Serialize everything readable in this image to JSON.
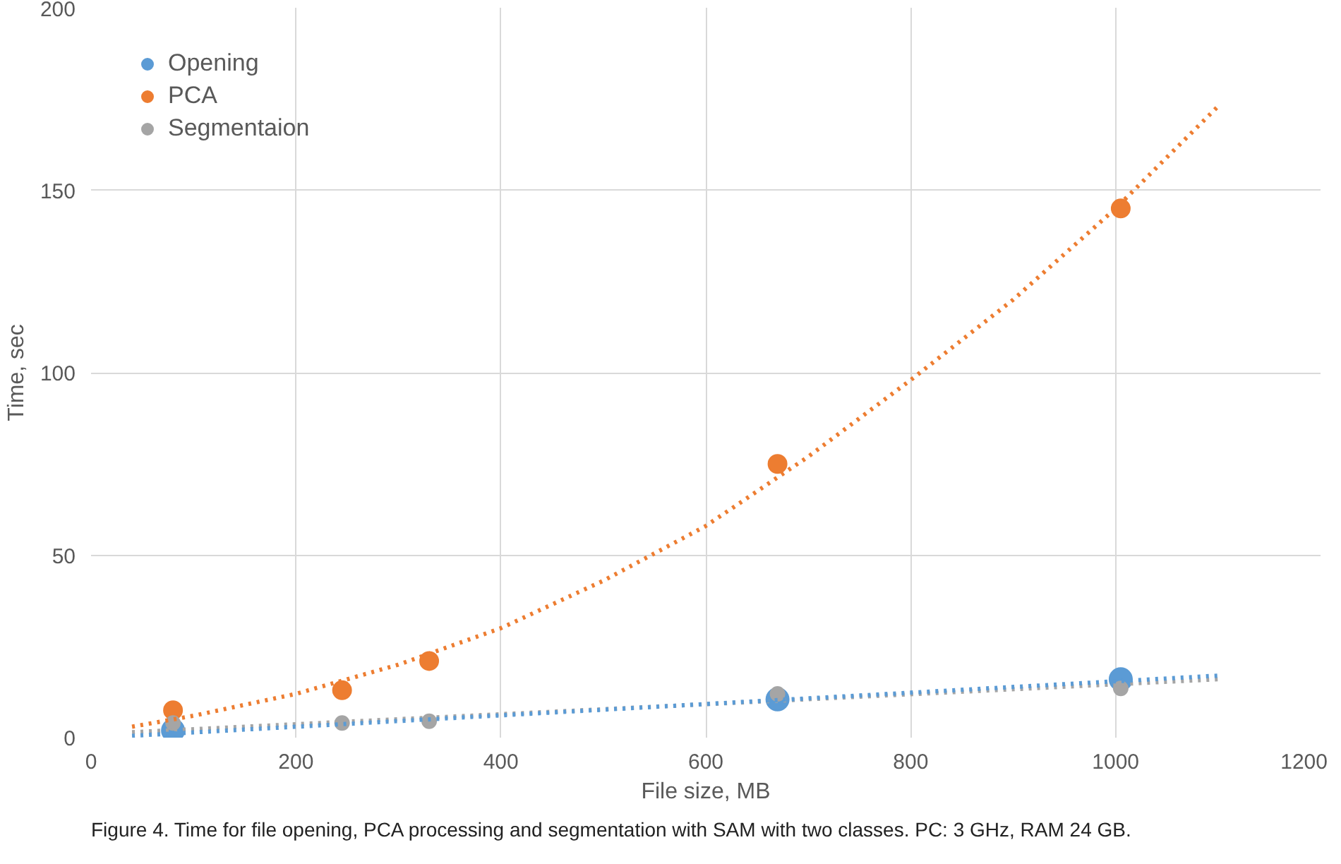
{
  "chart_data": {
    "type": "scatter",
    "xlabel": "File size, MB",
    "ylabel": "Time, sec",
    "x": [
      80,
      245,
      330,
      670,
      1005
    ],
    "series": [
      {
        "name": "Opening",
        "color": "#5b9bd5",
        "values": [
          2,
          null,
          null,
          10.5,
          16
        ]
      },
      {
        "name": "PCA",
        "color": "#ed7d31",
        "values": [
          7.5,
          13,
          21,
          75,
          145
        ]
      },
      {
        "name": "Segmentaion",
        "color": "#a5a5a5",
        "values": [
          4,
          4,
          4.5,
          12,
          13.5
        ]
      },
      {
        "type": "line",
        "marker": "none",
        "color": "#ed7d31",
        "line_style": "dotted",
        "x": [
          40,
          100,
          200,
          300,
          400,
          500,
          600,
          700,
          800,
          900,
          1000,
          1100
        ],
        "values": [
          3,
          6,
          12,
          20,
          30,
          43,
          58,
          77,
          98,
          120,
          145,
          173
        ]
      },
      {
        "type": "line",
        "marker": "none",
        "color": "#a5a5a5",
        "line_style": "dotted",
        "x": [
          40,
          1100
        ],
        "values": [
          1.5,
          16
        ]
      },
      {
        "type": "line",
        "marker": "none",
        "color": "#5b9bd5",
        "line_style": "dotted",
        "x": [
          40,
          1100
        ],
        "values": [
          0.5,
          17
        ]
      }
    ],
    "xlim": [
      0,
      1200
    ],
    "ylim": [
      0,
      200
    ],
    "xticks": [
      0,
      200,
      400,
      600,
      800,
      1000,
      1200
    ],
    "yticks": [
      0,
      50,
      100,
      150,
      200
    ],
    "grid": true,
    "legend": "top left",
    "marker": "circle",
    "annotations": [
      "Figure 4. Time for file opening, PCA processing and segmentation with SAM with two classes. PC: 3 GHz, RAM 24 GB."
    ]
  }
}
